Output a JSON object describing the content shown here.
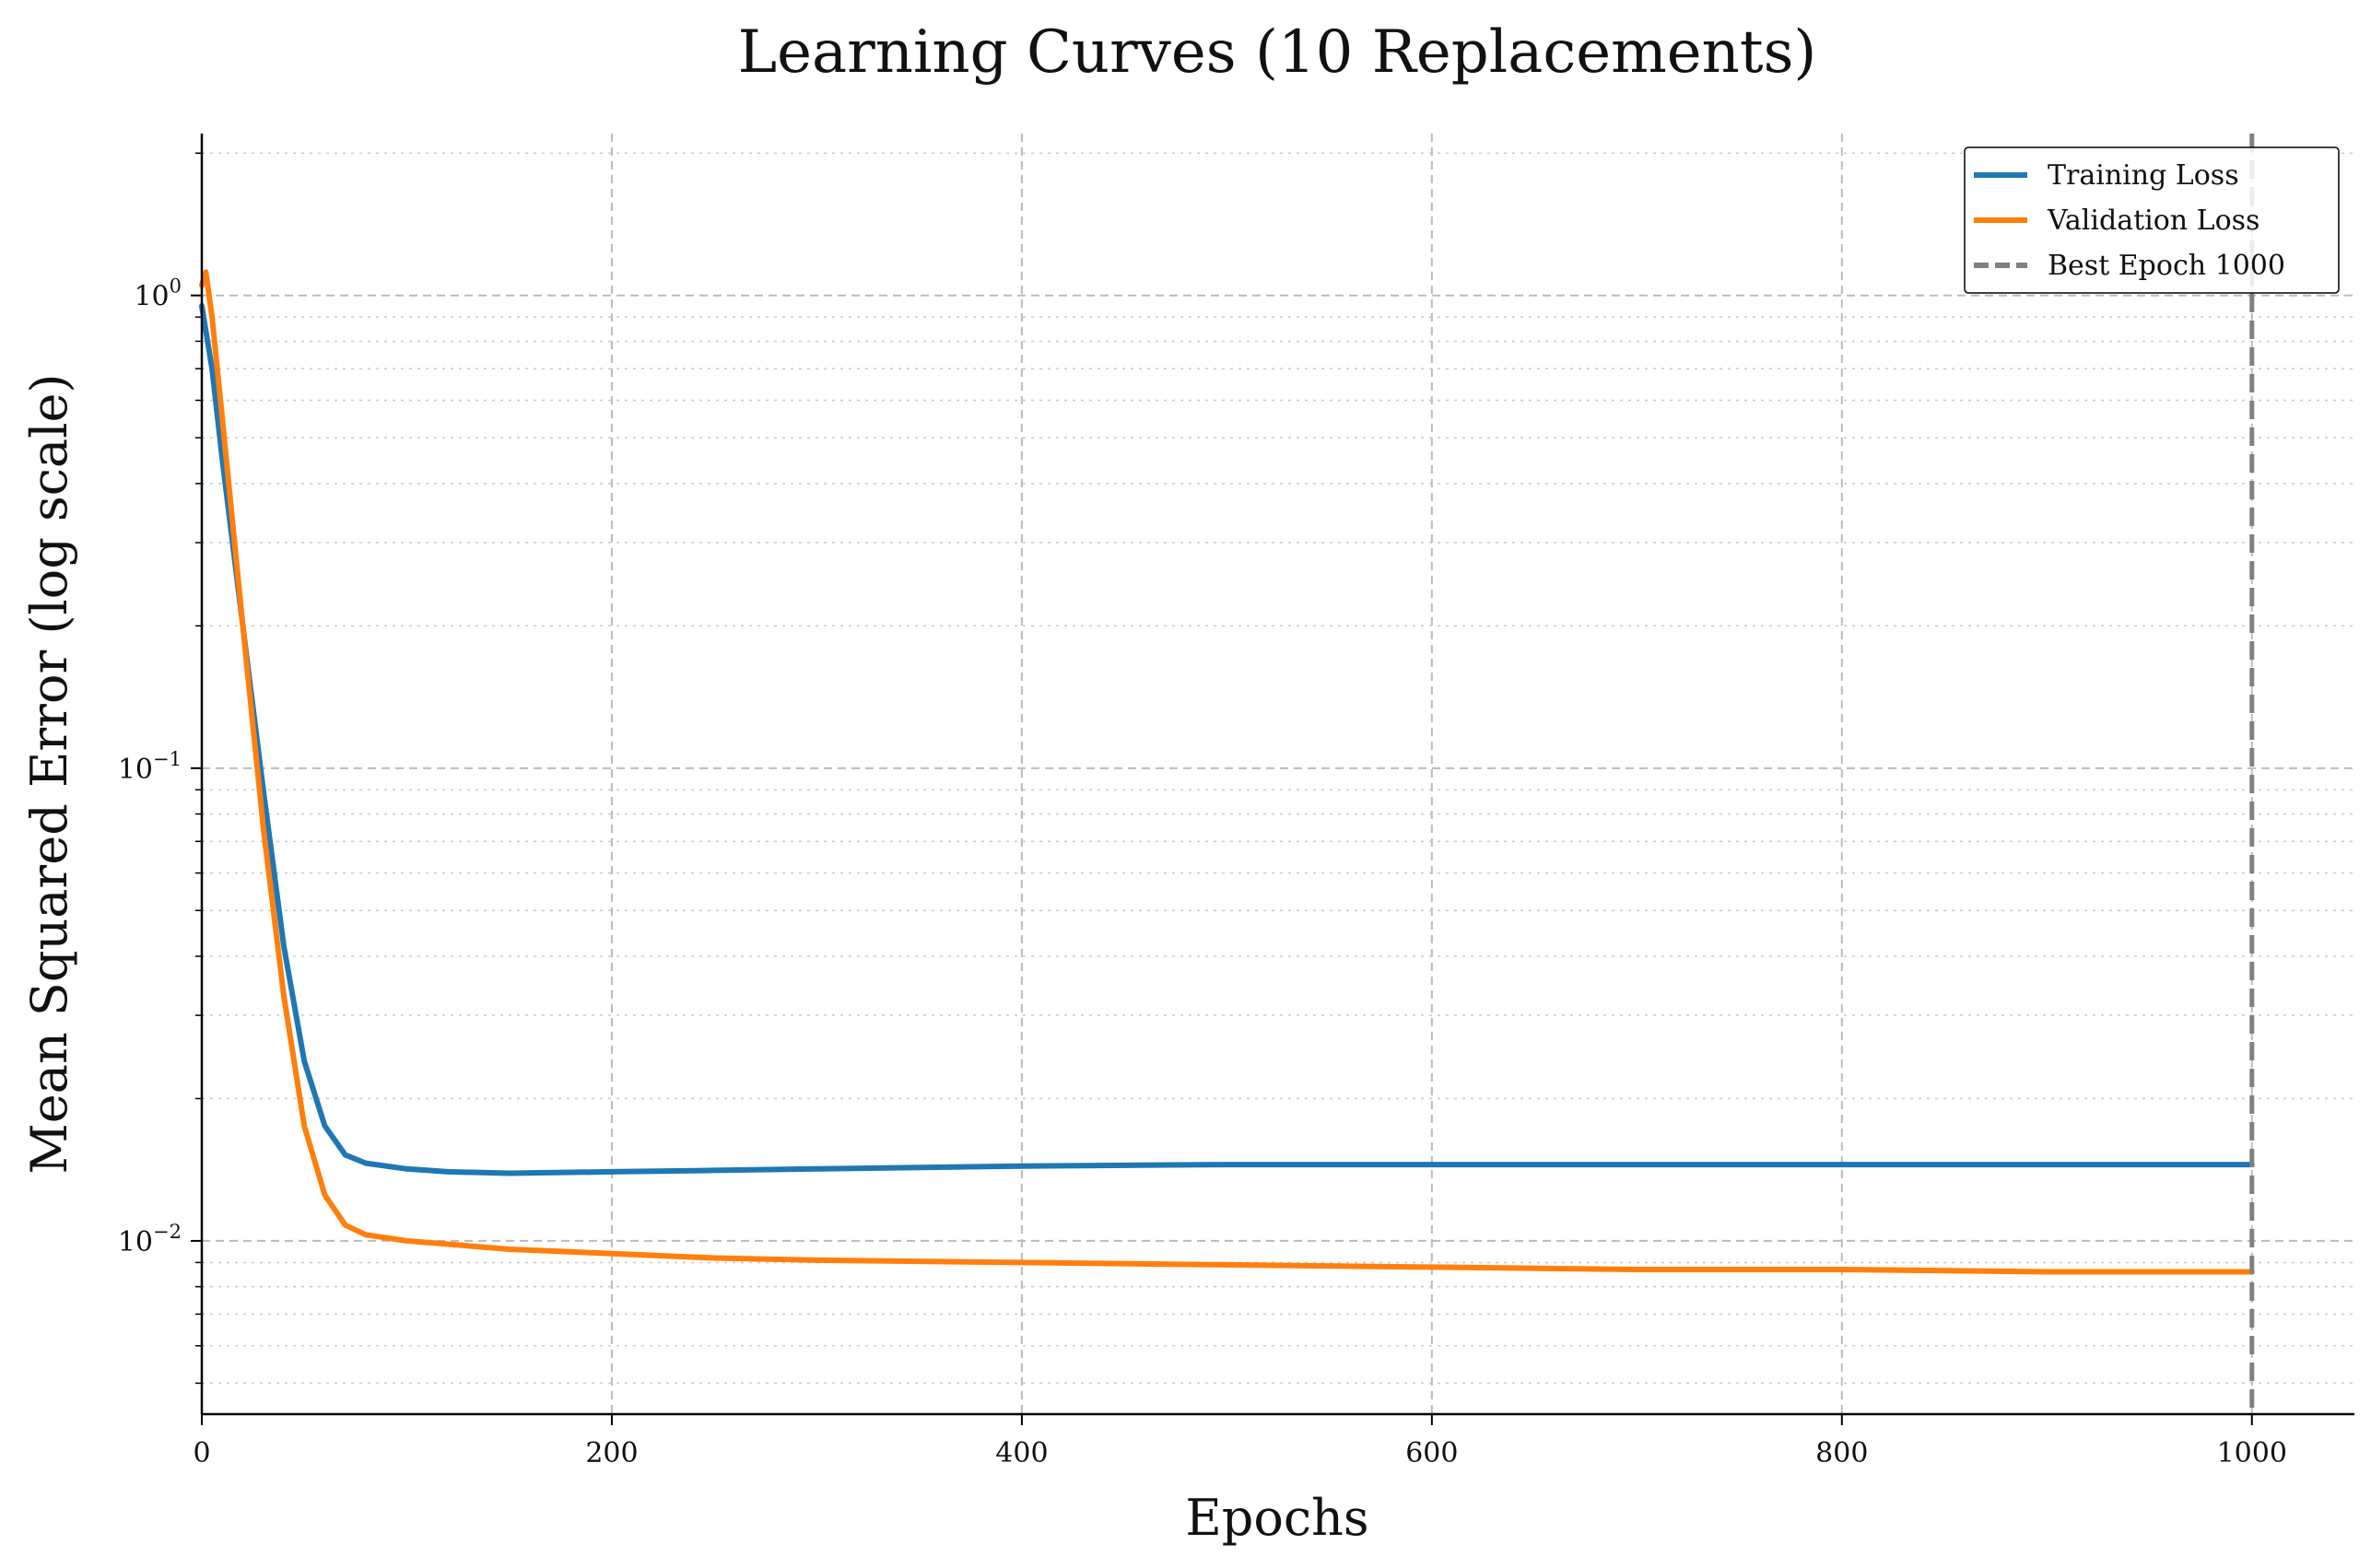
{
  "chart_data": {
    "type": "line",
    "title": "Learning Curves (10 Replacements)",
    "xlabel": "Epochs",
    "ylabel": "Mean Squared Error (log scale)",
    "yscale": "log",
    "xlim": [
      0,
      1050
    ],
    "ylim": [
      0.0043,
      2.2
    ],
    "x_ticks": [
      0,
      200,
      400,
      600,
      800,
      1000
    ],
    "x_tick_labels": [
      "0",
      "200",
      "400",
      "600",
      "800",
      "1000"
    ],
    "y_ticks": [
      {
        "value": 1,
        "base": "10",
        "exp": "0"
      },
      {
        "value": 0.1,
        "base": "10",
        "exp": "−1"
      },
      {
        "value": 0.01,
        "base": "10",
        "exp": "−2"
      }
    ],
    "grid": true,
    "legend_position": "top-right",
    "series": [
      {
        "name": "Training Loss",
        "color": "#1f77b4",
        "style": "solid",
        "x": [
          0,
          5,
          10,
          20,
          30,
          40,
          50,
          60,
          70,
          80,
          100,
          120,
          150,
          200,
          250,
          300,
          400,
          500,
          600,
          700,
          800,
          900,
          1000
        ],
        "y": [
          0.95,
          0.7,
          0.45,
          0.2,
          0.09,
          0.042,
          0.024,
          0.0175,
          0.0152,
          0.0146,
          0.0142,
          0.014,
          0.0139,
          0.014,
          0.0141,
          0.0142,
          0.0144,
          0.0145,
          0.0145,
          0.0145,
          0.0145,
          0.0145,
          0.0145
        ]
      },
      {
        "name": "Validation Loss",
        "color": "#ff7f0e",
        "style": "solid",
        "x": [
          0,
          2,
          5,
          10,
          20,
          30,
          40,
          50,
          60,
          70,
          80,
          100,
          150,
          200,
          250,
          300,
          400,
          500,
          600,
          700,
          800,
          900,
          1000
        ],
        "y": [
          1.05,
          1.12,
          0.9,
          0.55,
          0.2,
          0.075,
          0.033,
          0.0175,
          0.0125,
          0.0108,
          0.0103,
          0.01,
          0.0096,
          0.0094,
          0.0092,
          0.0091,
          0.009,
          0.0089,
          0.0088,
          0.0087,
          0.0087,
          0.0086,
          0.0086
        ]
      },
      {
        "name": "Best Epoch 1000",
        "color": "#808080",
        "style": "dashed",
        "type": "vline",
        "x": [
          1000
        ]
      }
    ]
  }
}
